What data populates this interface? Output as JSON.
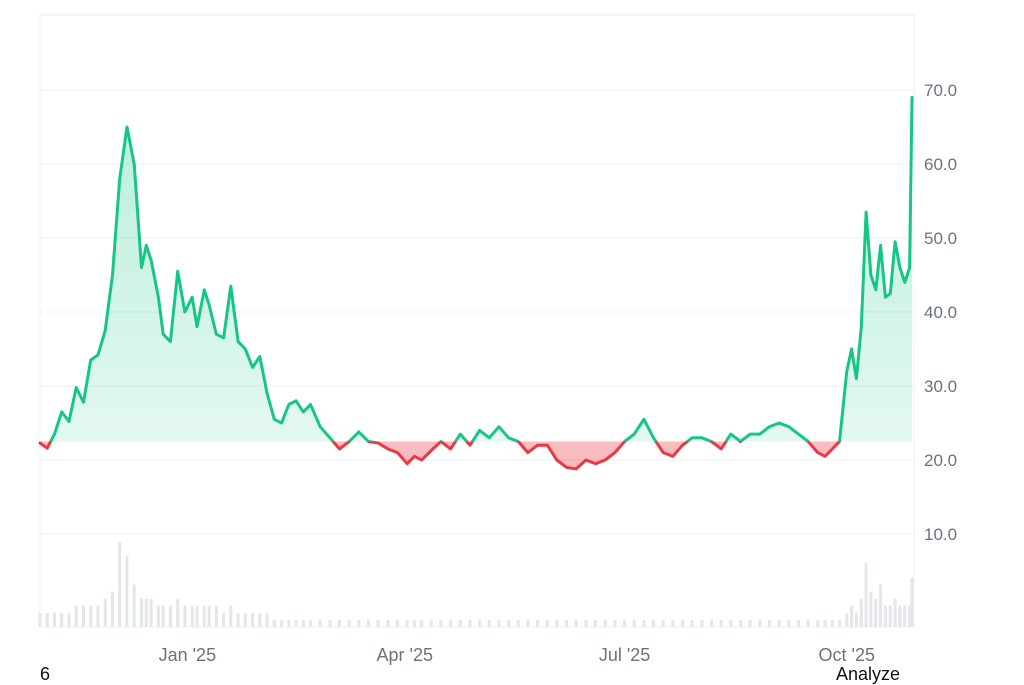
{
  "chart_data": {
    "type": "area",
    "baseline": 22.5,
    "ylim": [
      0,
      80
    ],
    "y_ticks": [
      "10.0",
      "20.0",
      "30.0",
      "40.0",
      "50.0",
      "60.0",
      "70.0"
    ],
    "y_tick_values": [
      10,
      20,
      30,
      40,
      50,
      60,
      70
    ],
    "x_ticks": [
      "Jan '25",
      "Apr '25",
      "Jul '25",
      "Oct '25"
    ],
    "x_tick_dates": [
      "2025-01-01",
      "2025-04-01",
      "2025-07-01",
      "2025-10-01"
    ],
    "x_range": [
      "2024-11-01",
      "2025-10-28"
    ],
    "grid": true,
    "colors": {
      "up": "#16c784",
      "down": "#ea3943",
      "grid": "#eef0f3",
      "volume": "#e3e6ea"
    },
    "series": [
      {
        "x": [
          "2024-11-01",
          "2024-11-04",
          "2024-11-07",
          "2024-11-10",
          "2024-11-13",
          "2024-11-16",
          "2024-11-19",
          "2024-11-22",
          "2024-11-25",
          "2024-11-28",
          "2024-12-01",
          "2024-12-04",
          "2024-12-07",
          "2024-12-10",
          "2024-12-13",
          "2024-12-15",
          "2024-12-17",
          "2024-12-20",
          "2024-12-22",
          "2024-12-25",
          "2024-12-28",
          "2024-12-31",
          "2025-01-03",
          "2025-01-05",
          "2025-01-08",
          "2025-01-10",
          "2025-01-13",
          "2025-01-16",
          "2025-01-19",
          "2025-01-22",
          "2025-01-25",
          "2025-01-28",
          "2025-01-31",
          "2025-02-03",
          "2025-02-06",
          "2025-02-09",
          "2025-02-12",
          "2025-02-15",
          "2025-02-18",
          "2025-02-21",
          "2025-02-25",
          "2025-03-01",
          "2025-03-05",
          "2025-03-09",
          "2025-03-13",
          "2025-03-17",
          "2025-03-21",
          "2025-03-25",
          "2025-03-29",
          "2025-04-02",
          "2025-04-05",
          "2025-04-08",
          "2025-04-12",
          "2025-04-16",
          "2025-04-20",
          "2025-04-24",
          "2025-04-28",
          "2025-05-02",
          "2025-05-06",
          "2025-05-10",
          "2025-05-14",
          "2025-05-18",
          "2025-05-22",
          "2025-05-26",
          "2025-05-30",
          "2025-06-03",
          "2025-06-07",
          "2025-06-11",
          "2025-06-15",
          "2025-06-19",
          "2025-06-23",
          "2025-06-27",
          "2025-07-01",
          "2025-07-05",
          "2025-07-09",
          "2025-07-13",
          "2025-07-17",
          "2025-07-21",
          "2025-07-25",
          "2025-07-29",
          "2025-08-02",
          "2025-08-06",
          "2025-08-10",
          "2025-08-14",
          "2025-08-18",
          "2025-08-22",
          "2025-08-26",
          "2025-08-30",
          "2025-09-03",
          "2025-09-07",
          "2025-09-11",
          "2025-09-15",
          "2025-09-19",
          "2025-09-22",
          "2025-09-25",
          "2025-09-28",
          "2025-10-01",
          "2025-10-03",
          "2025-10-05",
          "2025-10-07",
          "2025-10-09",
          "2025-10-11",
          "2025-10-13",
          "2025-10-15",
          "2025-10-17",
          "2025-10-19",
          "2025-10-21",
          "2025-10-23",
          "2025-10-25",
          "2025-10-27",
          "2025-10-28"
        ],
        "y": [
          22.3,
          21.6,
          23.5,
          26.5,
          25.2,
          29.8,
          27.8,
          33.5,
          34.2,
          37.5,
          45.0,
          58.0,
          65.0,
          60.0,
          46.0,
          49.0,
          47.0,
          42.0,
          37.0,
          36.0,
          45.5,
          40.0,
          42.0,
          38.0,
          43.0,
          41.0,
          37.0,
          36.5,
          43.5,
          36.0,
          35.0,
          32.5,
          34.0,
          29.0,
          25.5,
          25.0,
          27.5,
          28.0,
          26.5,
          27.5,
          24.5,
          23.0,
          21.5,
          22.5,
          23.8,
          22.5,
          22.3,
          21.5,
          21.0,
          19.5,
          20.5,
          20.0,
          21.3,
          22.5,
          21.5,
          23.5,
          22.0,
          24.0,
          23.0,
          24.5,
          23.0,
          22.5,
          21.0,
          22.0,
          22.0,
          20.0,
          19.0,
          18.8,
          20.0,
          19.5,
          20.0,
          21.0,
          22.5,
          23.5,
          25.5,
          23.0,
          21.0,
          20.5,
          22.0,
          23.0,
          23.0,
          22.5,
          21.5,
          23.5,
          22.5,
          23.5,
          23.5,
          24.5,
          25.0,
          24.5,
          23.5,
          22.5,
          21.0,
          20.5,
          21.5,
          22.5,
          32.0,
          35.0,
          31.0,
          38.0,
          53.5,
          45.0,
          43.0,
          49.0,
          42.0,
          42.5,
          49.5,
          46.0,
          44.0,
          46.0,
          69.0
        ]
      }
    ],
    "volume": [
      0.02,
      0.02,
      0.02,
      0.02,
      0.02,
      0.03,
      0.03,
      0.03,
      0.03,
      0.04,
      0.05,
      0.12,
      0.1,
      0.06,
      0.04,
      0.04,
      0.04,
      0.03,
      0.03,
      0.03,
      0.04,
      0.03,
      0.03,
      0.03,
      0.03,
      0.03,
      0.03,
      0.02,
      0.03,
      0.02,
      0.02,
      0.02,
      0.02,
      0.02,
      0.01,
      0.01,
      0.01,
      0.01,
      0.01,
      0.01,
      0.01,
      0.01,
      0.01,
      0.01,
      0.01,
      0.01,
      0.01,
      0.01,
      0.01,
      0.01,
      0.01,
      0.01,
      0.01,
      0.01,
      0.01,
      0.01,
      0.01,
      0.01,
      0.01,
      0.01,
      0.01,
      0.01,
      0.01,
      0.01,
      0.01,
      0.01,
      0.01,
      0.01,
      0.01,
      0.01,
      0.01,
      0.01,
      0.01,
      0.01,
      0.01,
      0.01,
      0.01,
      0.01,
      0.01,
      0.01,
      0.01,
      0.01,
      0.01,
      0.01,
      0.01,
      0.01,
      0.01,
      0.01,
      0.01,
      0.01,
      0.01,
      0.01,
      0.01,
      0.01,
      0.01,
      0.01,
      0.02,
      0.03,
      0.02,
      0.04,
      0.09,
      0.05,
      0.04,
      0.06,
      0.03,
      0.03,
      0.04,
      0.03,
      0.03,
      0.03,
      0.07
    ]
  },
  "footer": {
    "left": "6",
    "right": "Analyze"
  }
}
